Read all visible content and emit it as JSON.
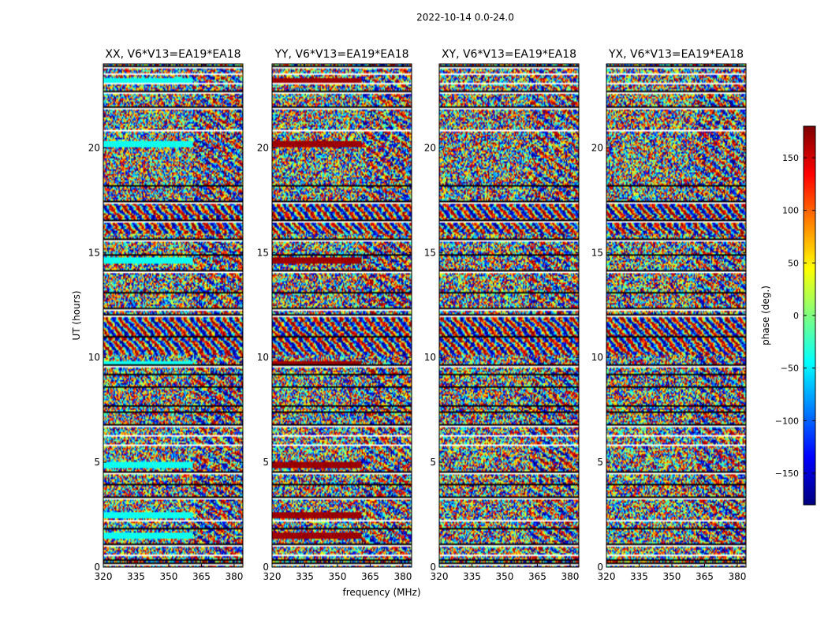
{
  "figure": {
    "suptitle": "2022-10-14 0.0-24.0",
    "shared_xlabel": "frequency (MHz)",
    "shared_ylabel": "UT (hours)"
  },
  "chart_data": {
    "type": "heatmap",
    "x": {
      "range": [
        320,
        384
      ],
      "ticks": [
        320,
        335,
        350,
        365,
        380
      ],
      "tick_labels": [
        "320",
        "335",
        "350",
        "365",
        "380"
      ],
      "label": "frequency (MHz)"
    },
    "y": {
      "range": [
        0,
        24
      ],
      "ticks": [
        0,
        5,
        10,
        15,
        20
      ],
      "tick_labels": [
        "0",
        "5",
        "10",
        "15",
        "20"
      ],
      "label": "UT (hours)"
    },
    "colorbar": {
      "label": "phase (deg.)",
      "range": [
        -180,
        180
      ],
      "ticks": [
        -150,
        -100,
        -50,
        0,
        50,
        100,
        150
      ],
      "tick_labels": [
        "−150",
        "−100",
        "−50",
        "0",
        "50",
        "100",
        "150"
      ],
      "colormap": "jet"
    },
    "panels": [
      {
        "title": "XX, V6*V13=EA19*EA18",
        "level_phase": -40
      },
      {
        "title": "YY, V6*V13=EA19*EA18",
        "level_phase": 170
      },
      {
        "title": "XY, V6*V13=EA19*EA18",
        "level_phase": null
      },
      {
        "title": "YX, V6*V13=EA19*EA18",
        "level_phase": null
      }
    ],
    "structure_notes": {
      "channel_break_mhz": 361,
      "flagged_hours": [
        0.15,
        0.35,
        0.55,
        1.05,
        1.85,
        2.2,
        3.3,
        3.95,
        4.5,
        5.8,
        6.25,
        6.75,
        7.4,
        7.7,
        8.6,
        9.2,
        9.6,
        11.0,
        12.0,
        12.3,
        13.1,
        14.1,
        14.9,
        15.6,
        16.5,
        17.4,
        18.2,
        20.8,
        21.9,
        22.65,
        23.05,
        23.5,
        23.85
      ],
      "flat_phase_hours": [
        1.5,
        2.45,
        4.9,
        9.7,
        14.6,
        20.15,
        23.2
      ],
      "fringe_bands": [
        [
          10.1,
          12.0
        ],
        [
          15.9,
          17.3
        ]
      ]
    }
  }
}
